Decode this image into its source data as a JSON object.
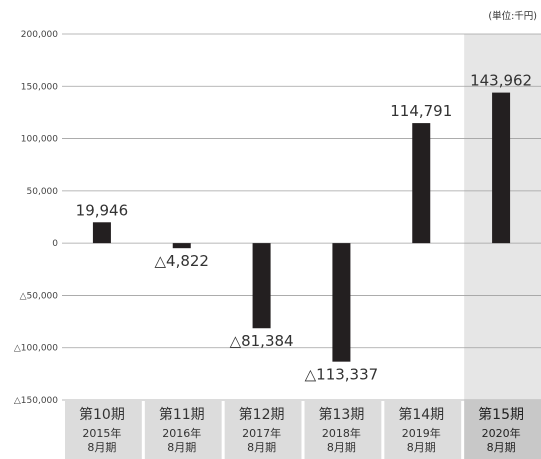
{
  "chart_data": {
    "type": "bar",
    "unit_label": "(単位:千円)",
    "categories": [
      {
        "period": "第10期",
        "year": "2015年",
        "month": "8月期"
      },
      {
        "period": "第11期",
        "year": "2016年",
        "month": "8月期"
      },
      {
        "period": "第12期",
        "year": "2017年",
        "month": "8月期"
      },
      {
        "period": "第13期",
        "year": "2018年",
        "month": "8月期"
      },
      {
        "period": "第14期",
        "year": "2019年",
        "month": "8月期"
      },
      {
        "period": "第15期",
        "year": "2020年",
        "month": "8月期"
      }
    ],
    "values": [
      19946,
      -4822,
      -81384,
      -113337,
      114791,
      143962
    ],
    "data_labels": [
      "19,946",
      "△4,822",
      "△81,384",
      "△113,337",
      "114,791",
      "143,962"
    ],
    "ylim": [
      -150000,
      200000
    ],
    "yticks": [
      {
        "value": 200000,
        "label": "200,000"
      },
      {
        "value": 150000,
        "label": "150,000"
      },
      {
        "value": 100000,
        "label": "100,000"
      },
      {
        "value": 50000,
        "label": "50,000"
      },
      {
        "value": 0,
        "label": "0"
      },
      {
        "value": -50000,
        "label": "△50,000"
      },
      {
        "value": -100000,
        "label": "△100,000"
      },
      {
        "value": -150000,
        "label": "△150,000"
      }
    ],
    "highlighted_index": 5,
    "colors": {
      "bar": "#231f20",
      "grid": "#a0a0a0",
      "highlight_bg": "#e6e6e6",
      "category_bg": "#dcdcdc",
      "category_highlight_bg": "#c8c8c8"
    }
  }
}
